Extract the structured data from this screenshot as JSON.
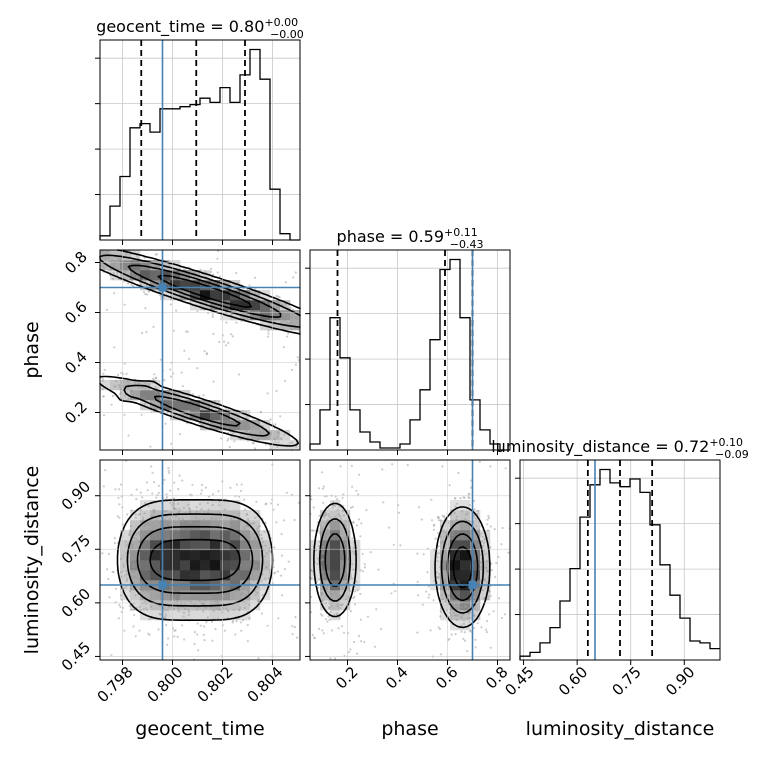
{
  "chart_data": {
    "type": "corner",
    "parameters": [
      "geocent_time",
      "phase",
      "luminosity_distance"
    ],
    "axis_labels": {
      "geocent_time": "geocent_time",
      "phase": "phase",
      "luminosity_distance": "luminosity_distance"
    },
    "truths": {
      "geocent_time": 0.7996,
      "phase": 0.7,
      "luminosity_distance": 0.65
    },
    "ranges": {
      "geocent_time": [
        0.7971,
        0.8051
      ],
      "phase": [
        0.05,
        0.85
      ],
      "luminosity_distance": [
        0.44,
        1.0
      ]
    },
    "ticks": {
      "geocent_time": {
        "values": [
          0.798,
          0.8,
          0.802,
          0.804
        ],
        "labels": [
          "0.798",
          "0.800",
          "0.802",
          "0.804"
        ]
      },
      "phase": {
        "values": [
          0.2,
          0.4,
          0.6,
          0.8
        ],
        "labels": [
          "0.2",
          "0.4",
          "0.6",
          "0.8"
        ]
      },
      "luminosity_distance": {
        "values": [
          0.45,
          0.6,
          0.75,
          0.9
        ],
        "labels": [
          "0.45",
          "0.60",
          "0.75",
          "0.90"
        ]
      }
    },
    "titles": {
      "geocent_time": {
        "main": "geocent_time = 0.80",
        "sup": "+0.00",
        "sub": "−0.00"
      },
      "phase": {
        "main": "phase = 0.59",
        "sup": "+0.11",
        "sub": "−0.43"
      },
      "luminosity_distance": {
        "main": "luminosity_distance = 0.72",
        "sup": "+0.10",
        "sub": "−0.09"
      }
    },
    "quantiles": {
      "geocent_time": [
        0.79875,
        0.80095,
        0.8029
      ],
      "phase": [
        0.16,
        0.59,
        0.7
      ],
      "luminosity_distance": [
        0.63,
        0.72,
        0.81
      ]
    },
    "histograms": {
      "geocent_time": {
        "bin_width": 0.0004,
        "start": 0.7971,
        "counts": [
          0.02,
          0.16,
          0.3,
          0.53,
          0.55,
          0.51,
          0.62,
          0.62,
          0.63,
          0.64,
          0.67,
          0.65,
          0.72,
          0.65,
          0.78,
          0.9,
          0.76,
          0.24,
          0.03,
          0.0
        ]
      },
      "phase": {
        "bin_width": 0.04,
        "start": 0.05,
        "counts": [
          0.03,
          0.2,
          0.66,
          0.46,
          0.2,
          0.09,
          0.04,
          0.01,
          0.01,
          0.03,
          0.15,
          0.3,
          0.55,
          0.9,
          0.95,
          0.66,
          0.25,
          0.1,
          0.03,
          0.0
        ]
      },
      "luminosity_distance": {
        "bin_width": 0.028,
        "start": 0.44,
        "counts": [
          0.02,
          0.04,
          0.09,
          0.17,
          0.31,
          0.48,
          0.75,
          0.92,
          1.0,
          0.93,
          0.91,
          0.95,
          0.88,
          0.71,
          0.5,
          0.34,
          0.22,
          0.1,
          0.09,
          0.06
        ]
      }
    },
    "grid": true
  }
}
